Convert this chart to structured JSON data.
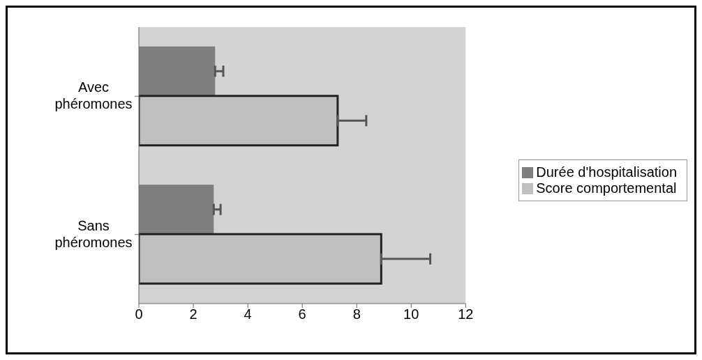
{
  "chart_data": {
    "type": "bar",
    "orientation": "horizontal",
    "categories": [
      "Avec phéromones",
      "Sans phéromones"
    ],
    "series": [
      {
        "name": "Durée d'hospitalisation",
        "color": "#7f7f7f",
        "values": [
          2.8,
          2.75
        ],
        "errors": [
          [
            2.8,
            3.1
          ],
          [
            2.75,
            3.0
          ]
        ]
      },
      {
        "name": "Score comportemental",
        "color": "#bfbfbf",
        "values": [
          7.3,
          8.9
        ],
        "errors": [
          [
            7.3,
            8.35
          ],
          [
            8.9,
            10.7
          ]
        ]
      }
    ],
    "xlim": [
      0,
      12
    ],
    "xticks": [
      0,
      2,
      4,
      6,
      8,
      10,
      12
    ],
    "grid": false,
    "legend": "right"
  }
}
